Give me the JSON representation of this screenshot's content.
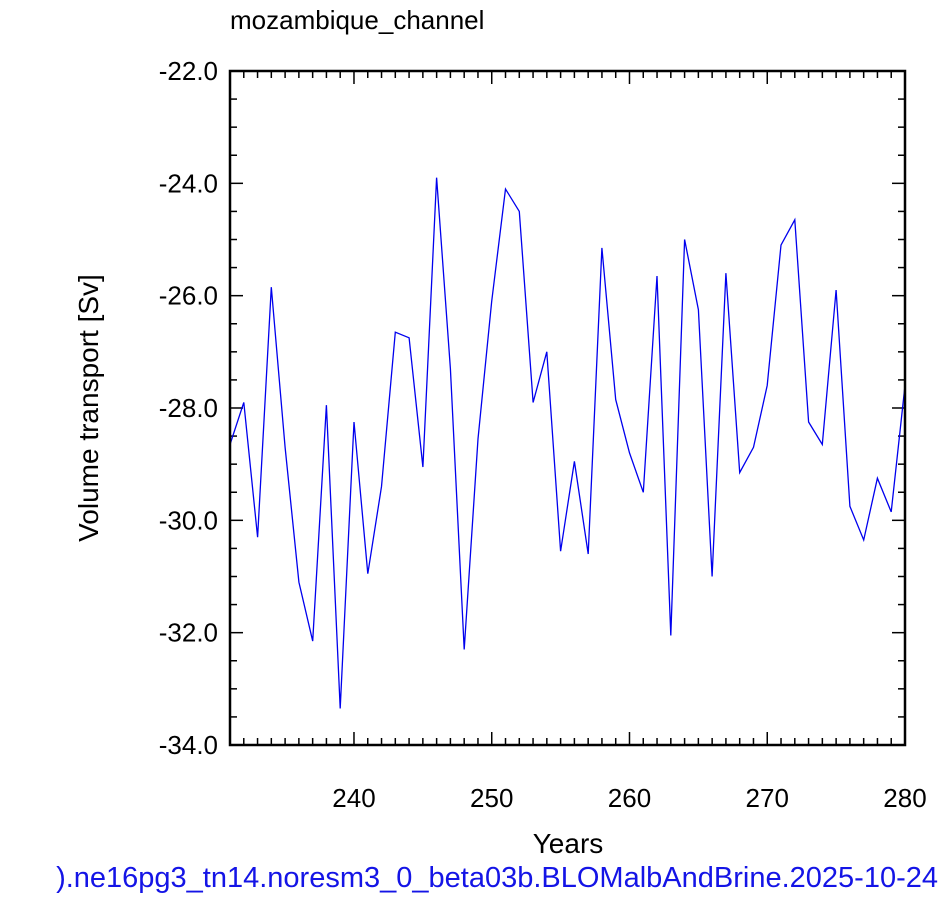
{
  "chart_data": {
    "type": "line",
    "title": "mozambique_channel",
    "xlabel": "Years",
    "ylabel": "Volume transport [Sv]",
    "xlim": [
      231,
      280
    ],
    "ylim": [
      -34.0,
      -22.0
    ],
    "x_ticks": [
      240,
      250,
      260,
      270,
      280
    ],
    "y_ticks": [
      -34.0,
      -32.0,
      -30.0,
      -28.0,
      -26.0,
      -24.0,
      -22.0
    ],
    "y_tick_labels": [
      "-34.0",
      "-32.0",
      "-30.0",
      "-28.0",
      "-26.0",
      "-24.0",
      "-22.0"
    ],
    "line_color": "#0000ee",
    "grid": false,
    "series": [
      {
        "x": [
          231,
          232,
          233,
          234,
          235,
          236,
          237,
          238,
          239,
          240,
          241,
          242,
          243,
          244,
          245,
          246,
          247,
          248,
          249,
          250,
          251,
          252,
          253,
          254,
          255,
          256,
          257,
          258,
          259,
          260,
          261,
          262,
          263,
          264,
          265,
          266,
          267,
          268,
          269,
          270,
          271,
          272,
          273,
          274,
          275,
          276,
          277,
          278,
          279,
          280
        ],
        "values": [
          -28.65,
          -27.9,
          -30.3,
          -25.85,
          -28.7,
          -31.1,
          -32.15,
          -27.95,
          -33.35,
          -28.25,
          -30.95,
          -29.4,
          -26.65,
          -26.75,
          -29.05,
          -23.9,
          -27.3,
          -32.3,
          -28.55,
          -26.1,
          -24.1,
          -24.5,
          -27.9,
          -27.0,
          -30.55,
          -28.95,
          -30.6,
          -25.15,
          -27.85,
          -28.8,
          -29.5,
          -25.65,
          -32.05,
          -25.0,
          -26.25,
          -31.0,
          -25.6,
          -29.15,
          -28.7,
          -27.6,
          -25.1,
          -24.65,
          -28.25,
          -28.65,
          -25.9,
          -29.75,
          -30.35,
          -29.25,
          -29.85,
          -27.6
        ]
      }
    ]
  },
  "caption": ").ne16pg3_tn14.noresm3_0_beta03b.BLOMalbAndBrine.2025-10-24"
}
